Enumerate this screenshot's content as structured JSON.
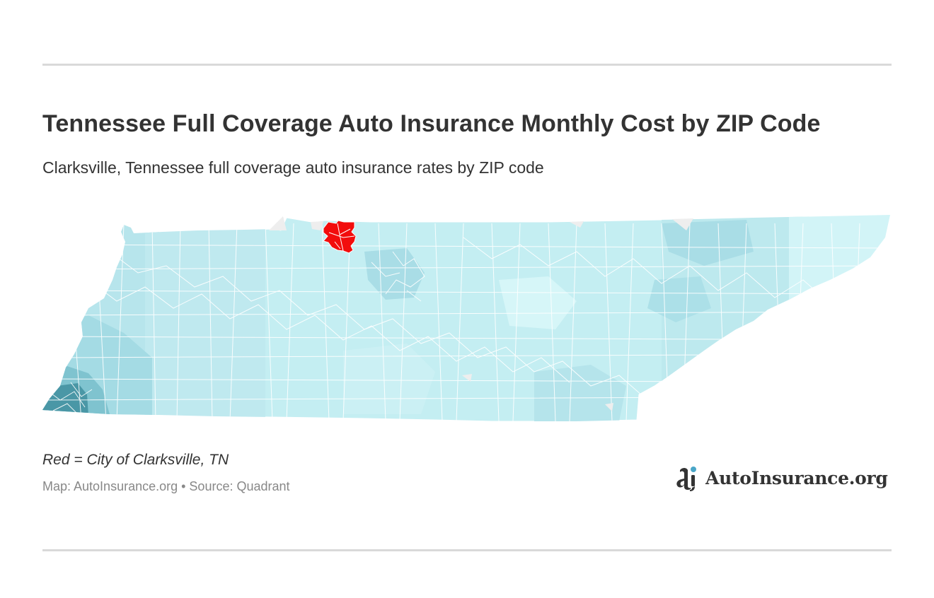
{
  "header": {
    "title": "Tennessee Full Coverage Auto Insurance Monthly Cost by ZIP Code",
    "subtitle": "Clarksville, Tennessee full coverage auto insurance rates by ZIP code"
  },
  "map": {
    "region": "Tennessee",
    "highlighted_city": "Clarksville",
    "colors": {
      "highlight": "#f20d0d",
      "lightest": "#d7f6f8",
      "light": "#c7eff3",
      "medium_light": "#b8e6ed",
      "medium": "#a4dbe4",
      "medium_dark": "#7fc3cf",
      "dark": "#4a97a6",
      "border": "#ffffff",
      "missing": "#eeeeee"
    }
  },
  "footer": {
    "note": "Red = City of Clarksville, TN",
    "source": "Map: AutoInsurance.org • Source: Quadrant",
    "logo_text": "AutoInsurance.org",
    "logo_icon": "autoinsurance-logo-icon"
  }
}
